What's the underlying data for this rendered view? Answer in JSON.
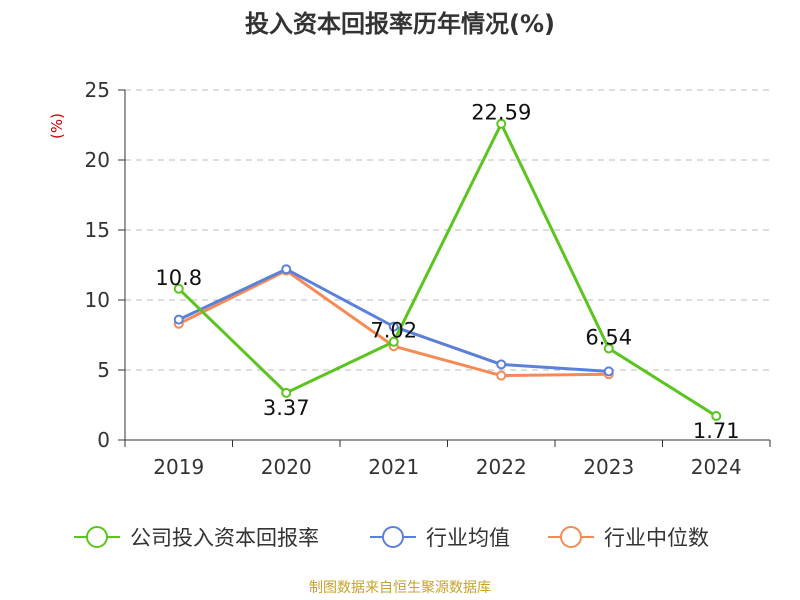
{
  "chart_data": {
    "type": "line",
    "title": "投入资本回报率历年情况(%)",
    "ylabel": "(%)",
    "xlabel": "",
    "ylim": [
      0,
      25
    ],
    "yticks": [
      0,
      5,
      10,
      15,
      20,
      25
    ],
    "categories": [
      "2019",
      "2020",
      "2021",
      "2022",
      "2023",
      "2024"
    ],
    "grid": true,
    "legend_position": "bottom",
    "series": [
      {
        "name": "公司投入资本回报率",
        "color": "#5cc41f",
        "values": [
          10.8,
          3.37,
          7.02,
          22.59,
          6.54,
          1.71
        ],
        "labels": [
          "10.8",
          "3.37",
          "7.02",
          "22.59",
          "6.54",
          "1.71"
        ]
      },
      {
        "name": "行业均值",
        "color": "#5b80d9",
        "values": [
          8.6,
          12.2,
          8.1,
          5.4,
          4.9,
          null
        ]
      },
      {
        "name": "行业中位数",
        "color": "#f58a56",
        "values": [
          8.3,
          12.1,
          6.7,
          4.6,
          4.7,
          null
        ]
      }
    ]
  },
  "source": "制图数据来自恒生聚源数据库"
}
